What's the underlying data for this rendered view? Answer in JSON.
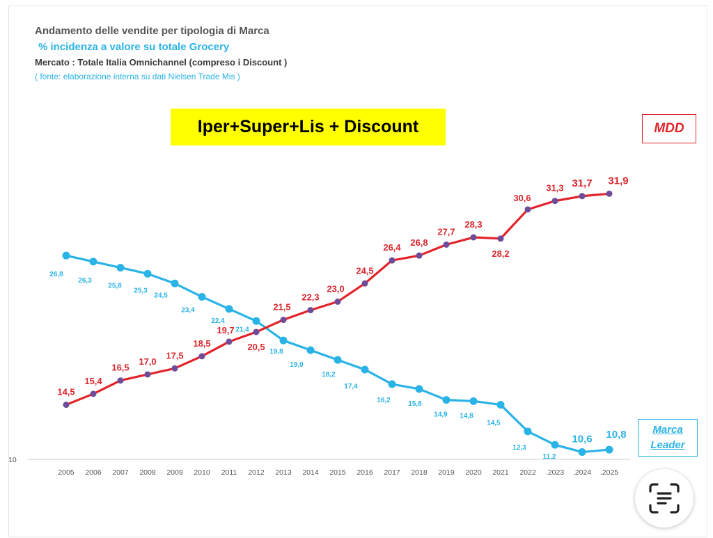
{
  "header": {
    "title": "Andamento delle vendite per tipologia di Marca",
    "subtitle": "% incidenza a valore su totale Grocery",
    "market": "Mercato : Totale Italia Omnichannel (compreso i Discount )",
    "source": "( fonte: elaborazione interna su dati  Nielsen Trade Mis )"
  },
  "banner": "Iper+Super+Lis + Discount",
  "legend": {
    "mdd": "MDD",
    "marca_line1": "Marca",
    "marca_line2": "Leader"
  },
  "chart_data": {
    "type": "line",
    "title": "Andamento delle vendite per tipologia di Marca",
    "xlabel": "",
    "ylabel": "",
    "ylim": [
      10,
      34
    ],
    "y_tick_labels": [
      "10"
    ],
    "categories": [
      "2005",
      "2006",
      "2007",
      "2008",
      "2009",
      "2010",
      "2011",
      "2012",
      "2013",
      "2014",
      "2015",
      "2016",
      "2017",
      "2018",
      "2019",
      "2020",
      "2021",
      "2022",
      ".2023",
      ".2024",
      ".2025"
    ],
    "series": [
      {
        "name": "MDD",
        "color": "#e2232a",
        "values": [
          14.5,
          15.4,
          16.5,
          17.0,
          17.5,
          18.5,
          19.7,
          20.5,
          21.5,
          22.3,
          23.0,
          24.5,
          26.4,
          26.8,
          27.7,
          28.3,
          28.2,
          30.6,
          31.3,
          31.7,
          31.9
        ],
        "labels": [
          "14,5",
          "15,4",
          "16,5",
          "17,0",
          "17,5",
          "18,5",
          "19,7",
          "20,5",
          "21,5",
          "22,3",
          "23,0",
          "24,5",
          "26,4",
          "26,8",
          "27,7",
          "28,3",
          "28,2",
          "30,6",
          "31,3",
          "31,7",
          "31,9"
        ]
      },
      {
        "name": "Marca Leader",
        "color": "#29b3e6",
        "values": [
          26.8,
          26.3,
          25.8,
          25.3,
          24.5,
          23.4,
          22.4,
          21.4,
          19.8,
          19.0,
          18.2,
          17.4,
          16.2,
          15.8,
          14.9,
          14.8,
          14.5,
          12.3,
          11.2,
          10.6,
          10.8
        ],
        "labels": [
          "26,8",
          "26,3",
          "25,8",
          "25,3",
          "24,5",
          "23,4",
          "22,4",
          "21,4",
          "19,8",
          "19,0",
          "18,2",
          "17,4",
          "16,2",
          "15,8",
          "14,9",
          "14,8",
          "14,5",
          "12,3",
          "11,2",
          "10,6",
          "10,8"
        ]
      }
    ]
  },
  "colors": {
    "red": "#e2232a",
    "blue": "#29b3e6",
    "banner": "#ffff00"
  },
  "icons": {
    "scan": "text-scan-icon"
  }
}
